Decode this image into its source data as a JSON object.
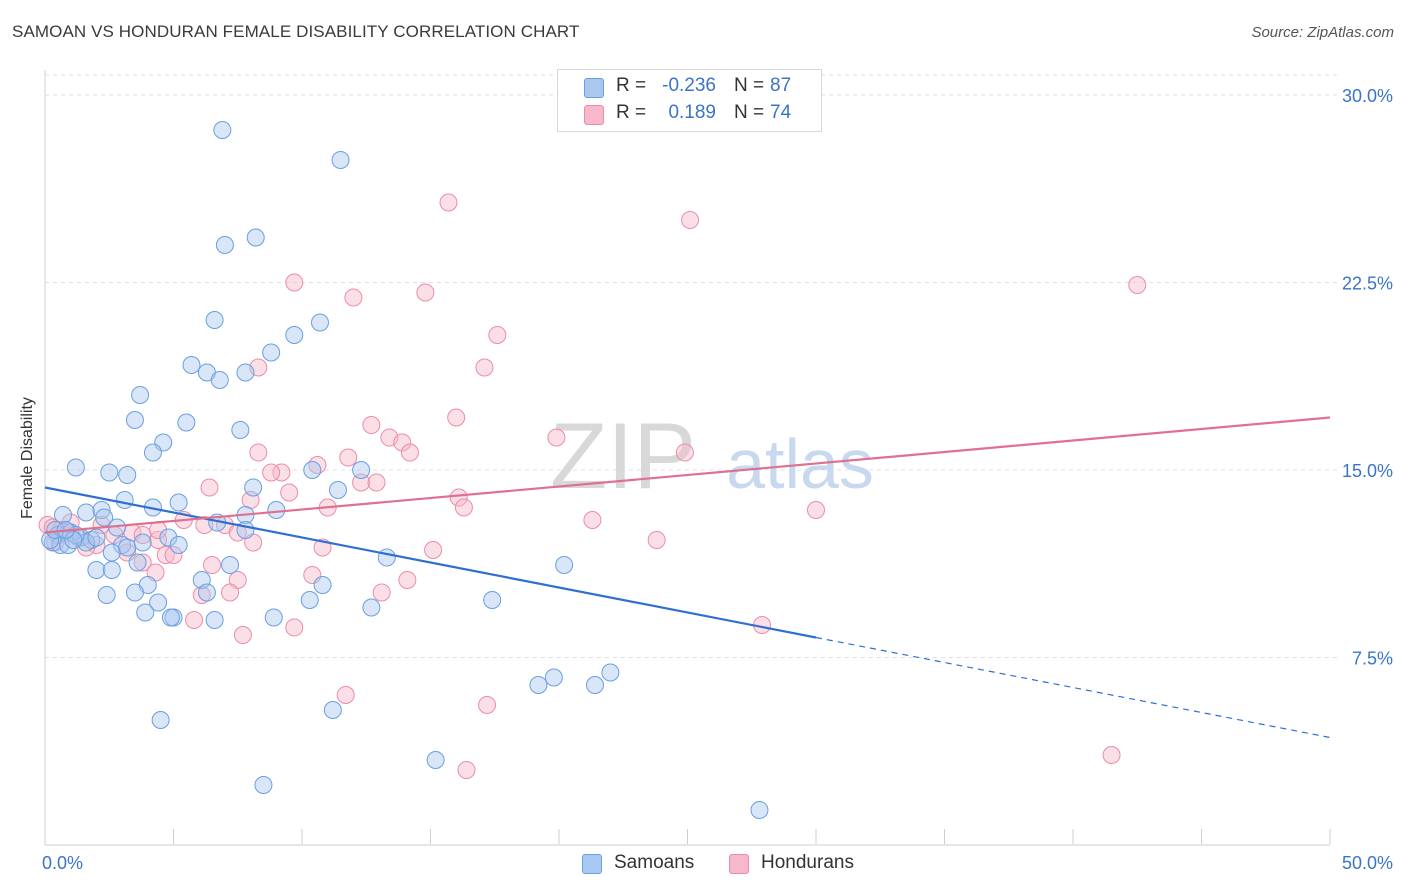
{
  "title": "SAMOAN VS HONDURAN FEMALE DISABILITY CORRELATION CHART",
  "source": "Source: ZipAtlas.com",
  "watermark": {
    "zip": "ZIP",
    "atlas": "atlas"
  },
  "legend": {
    "samoans": {
      "r_label": "R =",
      "r_value": "-0.236",
      "n_label": "N =",
      "n_value": "87"
    },
    "hondurans": {
      "r_label": "R =",
      "r_value": "0.189",
      "n_label": "N =",
      "n_value": "74"
    }
  },
  "bottom_legend": {
    "samoans": "Samoans",
    "hondurans": "Hondurans"
  },
  "colors": {
    "samoans_fill": "#a9c8f0",
    "samoans_stroke": "#6a9fe0",
    "samoans_line": "#2f6fd0",
    "hondurans_fill": "#f6b8ca",
    "hondurans_stroke": "#ec8ca8",
    "hondurans_line": "#e0708f",
    "axis_text": "#3a74c8",
    "grid": "#e0e0e0"
  },
  "chart_data": {
    "type": "scatter",
    "title": "SAMOAN VS HONDURAN FEMALE DISABILITY CORRELATION CHART",
    "xlabel": "",
    "ylabel": "Female Disability",
    "xlim": [
      0,
      50
    ],
    "ylim": [
      0,
      31
    ],
    "x_tick_labels": [
      "0.0%",
      "50.0%"
    ],
    "y_ticks": [
      7.5,
      15.0,
      22.5,
      30.0
    ],
    "y_tick_labels": [
      "7.5%",
      "15.0%",
      "22.5%",
      "30.0%"
    ],
    "grid": true,
    "legend_position": "top-center",
    "series": [
      {
        "name": "Samoans",
        "r": -0.236,
        "n": 87,
        "trend": {
          "x0": 0,
          "y0": 14.3,
          "x1": 30,
          "y1": 8.3,
          "dash_to_x": 50,
          "dash_to_y": 4.3
        },
        "points": [
          [
            6.9,
            28.6
          ],
          [
            11.5,
            27.4
          ],
          [
            7.0,
            24.0
          ],
          [
            8.2,
            24.3
          ],
          [
            6.6,
            21.0
          ],
          [
            10.7,
            20.9
          ],
          [
            9.7,
            20.4
          ],
          [
            8.8,
            19.7
          ],
          [
            5.7,
            19.2
          ],
          [
            6.3,
            18.9
          ],
          [
            7.8,
            18.9
          ],
          [
            6.8,
            18.6
          ],
          [
            3.7,
            18.0
          ],
          [
            3.5,
            17.0
          ],
          [
            5.5,
            16.9
          ],
          [
            7.6,
            16.6
          ],
          [
            4.6,
            16.1
          ],
          [
            4.2,
            15.7
          ],
          [
            1.2,
            15.1
          ],
          [
            2.5,
            14.9
          ],
          [
            3.2,
            14.8
          ],
          [
            10.4,
            15.0
          ],
          [
            12.3,
            15.0
          ],
          [
            8.1,
            14.3
          ],
          [
            11.4,
            14.2
          ],
          [
            3.1,
            13.8
          ],
          [
            4.2,
            13.5
          ],
          [
            5.2,
            13.7
          ],
          [
            1.6,
            13.3
          ],
          [
            2.2,
            13.4
          ],
          [
            9.0,
            13.4
          ],
          [
            0.7,
            13.2
          ],
          [
            2.3,
            13.1
          ],
          [
            6.7,
            12.9
          ],
          [
            7.8,
            13.2
          ],
          [
            2.8,
            12.7
          ],
          [
            0.5,
            12.4
          ],
          [
            1.0,
            12.5
          ],
          [
            1.4,
            12.3
          ],
          [
            1.8,
            12.2
          ],
          [
            0.3,
            12.1
          ],
          [
            0.6,
            12.0
          ],
          [
            0.9,
            12.0
          ],
          [
            1.6,
            12.1
          ],
          [
            0.2,
            12.2
          ],
          [
            1.2,
            12.4
          ],
          [
            3.0,
            12.0
          ],
          [
            4.8,
            12.3
          ],
          [
            7.8,
            12.6
          ],
          [
            2.6,
            11.7
          ],
          [
            3.2,
            11.9
          ],
          [
            3.6,
            11.3
          ],
          [
            2.0,
            11.0
          ],
          [
            2.6,
            11.0
          ],
          [
            13.3,
            11.5
          ],
          [
            20.2,
            11.2
          ],
          [
            6.1,
            10.6
          ],
          [
            7.2,
            11.2
          ],
          [
            4.0,
            10.4
          ],
          [
            10.8,
            10.4
          ],
          [
            3.5,
            10.1
          ],
          [
            6.3,
            10.1
          ],
          [
            2.4,
            10.0
          ],
          [
            4.4,
            9.7
          ],
          [
            3.9,
            9.3
          ],
          [
            10.3,
            9.8
          ],
          [
            12.7,
            9.5
          ],
          [
            17.4,
            9.8
          ],
          [
            5.0,
            9.1
          ],
          [
            4.9,
            9.1
          ],
          [
            6.6,
            9.0
          ],
          [
            8.9,
            9.1
          ],
          [
            19.8,
            6.7
          ],
          [
            21.4,
            6.4
          ],
          [
            19.2,
            6.4
          ],
          [
            22.0,
            6.9
          ],
          [
            11.2,
            5.4
          ],
          [
            4.5,
            5.0
          ],
          [
            15.2,
            3.4
          ],
          [
            8.5,
            2.4
          ],
          [
            27.8,
            1.4
          ],
          [
            0.4,
            12.6
          ],
          [
            1.1,
            12.2
          ],
          [
            2.0,
            12.3
          ],
          [
            0.8,
            12.6
          ],
          [
            5.2,
            12.0
          ],
          [
            3.8,
            12.1
          ]
        ]
      },
      {
        "name": "Hondurans",
        "r": 0.189,
        "n": 74,
        "trend": {
          "x0": 0,
          "y0": 12.5,
          "x1": 50,
          "y1": 17.1
        },
        "points": [
          [
            15.7,
            25.7
          ],
          [
            25.1,
            25.0
          ],
          [
            9.7,
            22.5
          ],
          [
            14.8,
            22.1
          ],
          [
            12.0,
            21.9
          ],
          [
            42.5,
            22.4
          ],
          [
            17.6,
            20.4
          ],
          [
            17.1,
            19.1
          ],
          [
            8.3,
            19.1
          ],
          [
            16.0,
            17.1
          ],
          [
            12.7,
            16.8
          ],
          [
            13.4,
            16.3
          ],
          [
            19.9,
            16.3
          ],
          [
            13.9,
            16.1
          ],
          [
            14.2,
            15.7
          ],
          [
            24.9,
            15.7
          ],
          [
            8.3,
            15.7
          ],
          [
            11.8,
            15.5
          ],
          [
            10.6,
            15.2
          ],
          [
            9.2,
            14.9
          ],
          [
            8.8,
            14.9
          ],
          [
            12.3,
            14.5
          ],
          [
            12.9,
            14.5
          ],
          [
            6.4,
            14.3
          ],
          [
            9.5,
            14.1
          ],
          [
            16.1,
            13.9
          ],
          [
            8.0,
            13.8
          ],
          [
            16.3,
            13.5
          ],
          [
            11.0,
            13.5
          ],
          [
            30.0,
            13.4
          ],
          [
            5.4,
            13.0
          ],
          [
            7.0,
            12.8
          ],
          [
            6.2,
            12.8
          ],
          [
            21.3,
            13.0
          ],
          [
            7.5,
            12.5
          ],
          [
            3.4,
            12.5
          ],
          [
            3.8,
            12.4
          ],
          [
            4.4,
            12.2
          ],
          [
            2.7,
            12.4
          ],
          [
            2.0,
            12.0
          ],
          [
            3.2,
            11.7
          ],
          [
            4.7,
            11.6
          ],
          [
            5.0,
            11.6
          ],
          [
            23.8,
            12.2
          ],
          [
            15.1,
            11.8
          ],
          [
            10.8,
            11.9
          ],
          [
            8.1,
            12.1
          ],
          [
            3.8,
            11.3
          ],
          [
            6.5,
            11.2
          ],
          [
            4.3,
            10.9
          ],
          [
            7.5,
            10.6
          ],
          [
            10.4,
            10.8
          ],
          [
            14.1,
            10.6
          ],
          [
            13.1,
            10.1
          ],
          [
            6.1,
            10.0
          ],
          [
            7.2,
            10.1
          ],
          [
            5.8,
            9.0
          ],
          [
            9.7,
            8.7
          ],
          [
            27.9,
            8.8
          ],
          [
            7.7,
            8.4
          ],
          [
            11.7,
            6.0
          ],
          [
            17.2,
            5.6
          ],
          [
            41.5,
            3.6
          ],
          [
            16.4,
            3.0
          ],
          [
            0.1,
            12.8
          ],
          [
            0.6,
            12.6
          ],
          [
            0.9,
            12.5
          ],
          [
            1.3,
            12.3
          ],
          [
            0.4,
            12.1
          ],
          [
            1.6,
            11.9
          ],
          [
            2.2,
            12.8
          ],
          [
            0.3,
            12.7
          ],
          [
            1.0,
            12.9
          ],
          [
            4.4,
            12.6
          ]
        ]
      }
    ]
  }
}
